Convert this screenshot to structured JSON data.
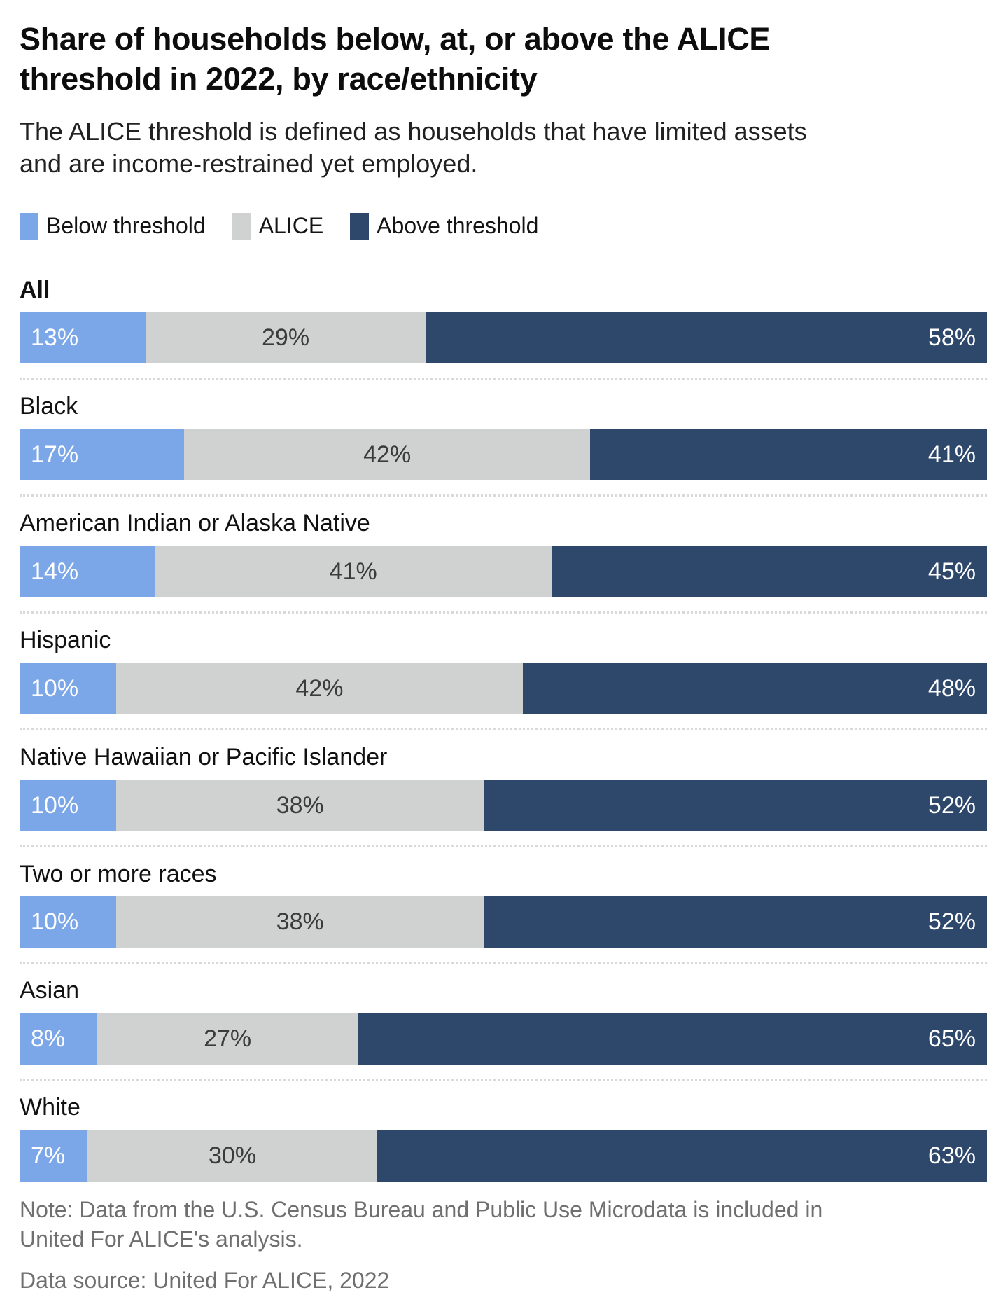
{
  "title": "Share of households below, at, or above the ALICE threshold in 2022, by race/ethnicity",
  "subtitle": "The ALICE threshold is defined as households that have limited assets and are income-restrained yet employed.",
  "legend": [
    {
      "label": "Below threshold",
      "color": "#7BA7E9"
    },
    {
      "label": "ALICE",
      "color": "#D0D2D1"
    },
    {
      "label": "Above threshold",
      "color": "#2E486B"
    }
  ],
  "chart_data": {
    "type": "bar",
    "orientation": "horizontal-stacked",
    "value_suffix": "%",
    "xlim": [
      0,
      100
    ],
    "grid": false,
    "legend_position": "top",
    "categories": [
      "All",
      "Black",
      "American Indian or Alaska Native",
      "Hispanic",
      "Native Hawaiian or Pacific Islander",
      "Two or more races",
      "Asian",
      "White"
    ],
    "series": [
      {
        "name": "Below threshold",
        "color": "#7BA7E9",
        "values": [
          13,
          17,
          14,
          10,
          10,
          10,
          8,
          7
        ]
      },
      {
        "name": "ALICE",
        "color": "#D0D2D1",
        "values": [
          29,
          42,
          41,
          42,
          38,
          38,
          27,
          30
        ]
      },
      {
        "name": "Above threshold",
        "color": "#2E486B",
        "values": [
          58,
          41,
          45,
          48,
          52,
          52,
          65,
          63
        ]
      }
    ]
  },
  "note": "Note: Data from the U.S. Census Bureau and Public Use Microdata is included in United For ALICE's analysis.",
  "source": "Data source: United For ALICE, 2022"
}
